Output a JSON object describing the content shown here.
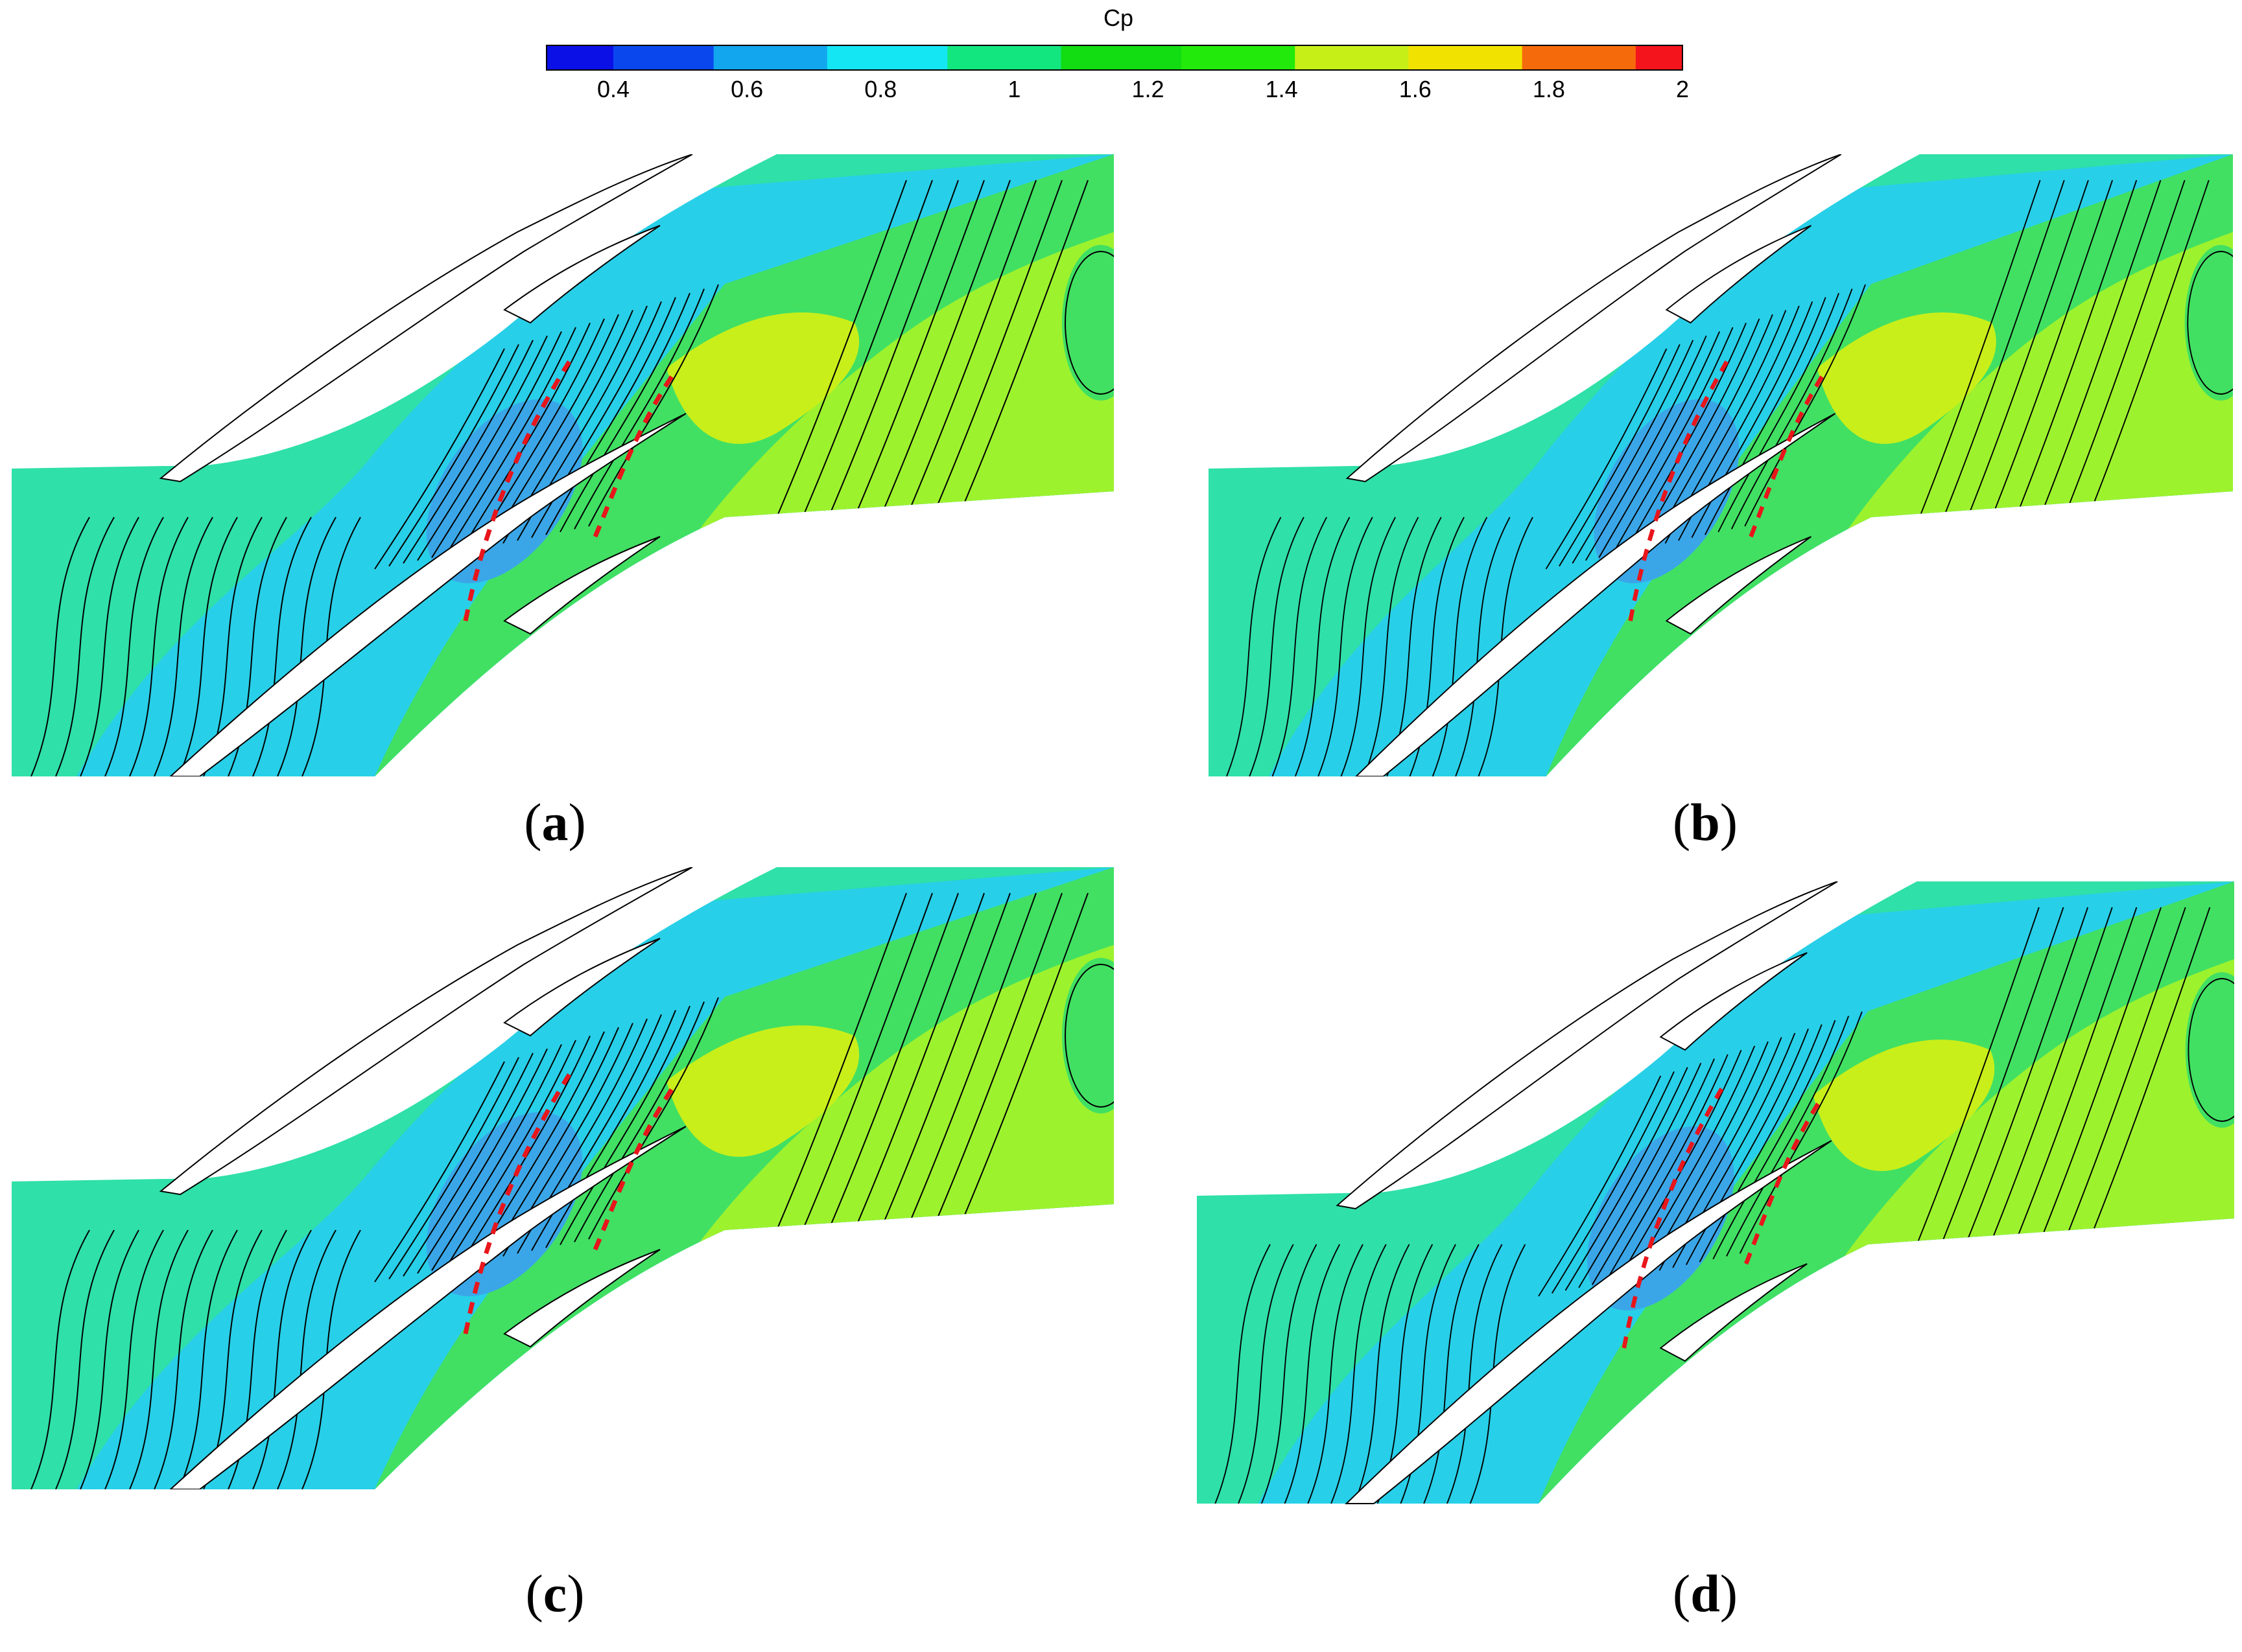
{
  "colorbar": {
    "title": "Cp",
    "ticks": [
      "0.4",
      "0.6",
      "0.8",
      "1",
      "1.2",
      "1.4",
      "1.6",
      "1.8",
      "2"
    ],
    "tick_values": [
      0.4,
      0.6,
      0.8,
      1.0,
      1.2,
      1.4,
      1.6,
      1.8,
      2.0
    ],
    "range": [
      0.3,
      2.0
    ],
    "bands": [
      {
        "from": 0.3,
        "to": 0.4,
        "color": "#0a10e6"
      },
      {
        "from": 0.4,
        "to": 0.55,
        "color": "#0a48ee"
      },
      {
        "from": 0.55,
        "to": 0.72,
        "color": "#11a6ee"
      },
      {
        "from": 0.72,
        "to": 0.9,
        "color": "#14e6f4"
      },
      {
        "from": 0.9,
        "to": 1.07,
        "color": "#12e67e"
      },
      {
        "from": 1.07,
        "to": 1.25,
        "color": "#12dc12"
      },
      {
        "from": 1.25,
        "to": 1.42,
        "color": "#22ea0a"
      },
      {
        "from": 1.42,
        "to": 1.59,
        "color": "#c6ef18"
      },
      {
        "from": 1.59,
        "to": 1.76,
        "color": "#f2e200"
      },
      {
        "from": 1.76,
        "to": 1.93,
        "color": "#f56a0a"
      },
      {
        "from": 1.93,
        "to": 2.0,
        "color": "#f4141b"
      }
    ]
  },
  "panels": [
    {
      "id": "a",
      "label": "a"
    },
    {
      "id": "b",
      "label": "b"
    },
    {
      "id": "c",
      "label": "c"
    },
    {
      "id": "d",
      "label": "d"
    }
  ],
  "colors": {
    "inlet": "#2fe0a8",
    "passage_suction": "#28cfe8",
    "passage_low": "#3aa6e8",
    "mid": "#41e063",
    "outlet": "#9df22e",
    "high": "#c8ef1a",
    "blade": "#ffffff",
    "contour": "#000000",
    "marker": "#e8151b"
  }
}
